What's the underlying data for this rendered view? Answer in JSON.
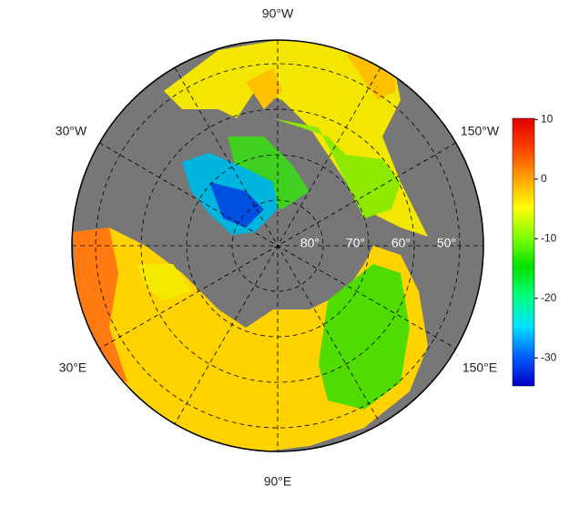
{
  "map": {
    "lon_labels": [
      "90°W",
      "30°W",
      "150°W",
      "30°E",
      "150°E",
      "90°E"
    ],
    "lat_labels": [
      "80°",
      "70°",
      "60°",
      "50°"
    ]
  },
  "colorbar": {
    "lim": [
      -34.7,
      10.2
    ],
    "ticks": [
      10,
      0,
      -10,
      -20,
      -30
    ],
    "colors": [
      "#0000c8",
      "#0060ff",
      "#00e0ff",
      "#00ff80",
      "#00e000",
      "#80ff00",
      "#ffff00",
      "#ffa000",
      "#ff4000",
      "#e00000"
    ]
  }
}
